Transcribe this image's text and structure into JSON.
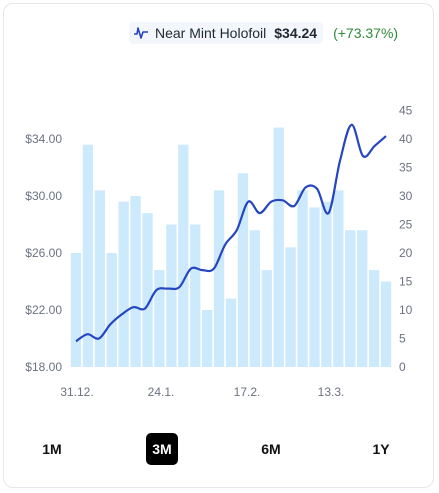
{
  "legend": {
    "icon": "price-line-icon",
    "name": "Near Mint Holofoil",
    "price": "$34.24",
    "change": "(+73.37%)",
    "change_color": "#2e8b3a"
  },
  "chart_data": {
    "type": "bar+line",
    "x_tick_labels": [
      "31.12.",
      "24.1.",
      "17.2.",
      "13.3."
    ],
    "y_left": {
      "ticks": [
        "$18.00",
        "$22.00",
        "$26.00",
        "$30.00",
        "$34.00"
      ],
      "range": [
        18,
        36.5
      ]
    },
    "y_right": {
      "ticks": [
        "0",
        "5",
        "10",
        "15",
        "20",
        "25",
        "30",
        "35",
        "40",
        "45"
      ],
      "range": [
        0,
        45
      ]
    },
    "grid": false,
    "bar_series": {
      "axis": "right",
      "color": "#cdeafd",
      "values": [
        20,
        39,
        31,
        20,
        29,
        30,
        27,
        17,
        25,
        39,
        25,
        10,
        31,
        12,
        34,
        24,
        17,
        42,
        21,
        31,
        28,
        29,
        31,
        24,
        24,
        17,
        15
      ]
    },
    "line_series": {
      "axis": "left",
      "color": "#2546c0",
      "values": [
        19.8,
        20.3,
        20.0,
        21.0,
        21.7,
        22.2,
        22.1,
        23.4,
        23.5,
        23.6,
        24.9,
        24.8,
        24.9,
        26.6,
        27.6,
        29.6,
        28.8,
        29.6,
        29.7,
        29.3,
        30.6,
        30.5,
        28.8,
        32.5,
        35.0,
        32.8,
        33.5,
        34.2
      ]
    }
  },
  "ranges": [
    {
      "label": "1M",
      "active": false
    },
    {
      "label": "3M",
      "active": true
    },
    {
      "label": "6M",
      "active": false
    },
    {
      "label": "1Y",
      "active": false
    }
  ]
}
